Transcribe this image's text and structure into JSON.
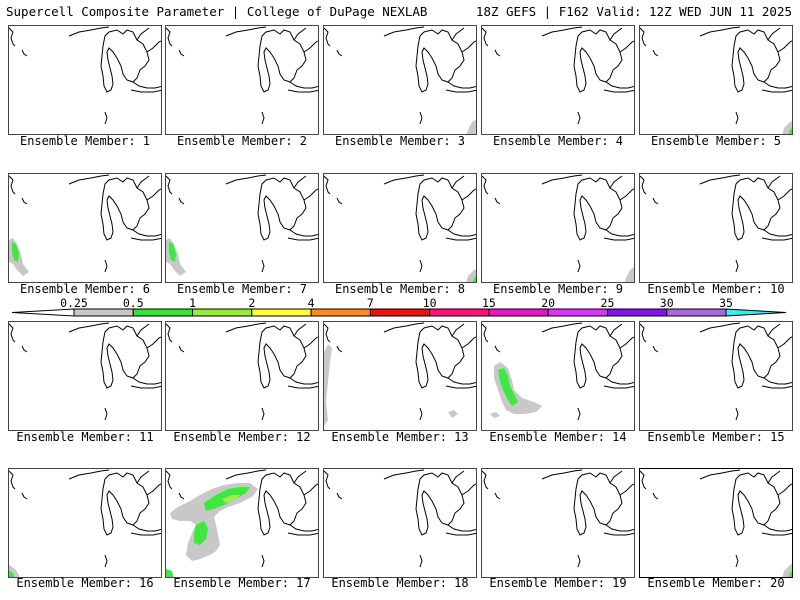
{
  "header": {
    "title": "Supercell Composite Parameter | College of DuPage NEXLAB",
    "run_info": "18Z GEFS | F162 Valid: 12Z WED JUN 11 2025"
  },
  "caption_prefix": "Ensemble Member:",
  "members": [
    {
      "id": "1",
      "label": "Ensemble Member: 1",
      "blobs": []
    },
    {
      "id": "2",
      "label": "Ensemble Member: 2",
      "blobs": []
    },
    {
      "id": "3",
      "label": "Ensemble Member: 3",
      "blobs": [
        {
          "shape": "edge-br",
          "level": "gray"
        }
      ]
    },
    {
      "id": "4",
      "label": "Ensemble Member: 4",
      "blobs": []
    },
    {
      "id": "5",
      "label": "Ensemble Member: 5",
      "blobs": [
        {
          "shape": "corner-br",
          "level": "green"
        }
      ]
    },
    {
      "id": "6",
      "label": "Ensemble Member: 6",
      "blobs": [
        {
          "shape": "west-small",
          "level": "green"
        }
      ]
    },
    {
      "id": "7",
      "label": "Ensemble Member: 7",
      "blobs": [
        {
          "shape": "west-small",
          "level": "green"
        }
      ]
    },
    {
      "id": "8",
      "label": "Ensemble Member: 8",
      "blobs": [
        {
          "shape": "corner-br",
          "level": "green"
        }
      ]
    },
    {
      "id": "9",
      "label": "Ensemble Member: 9",
      "blobs": [
        {
          "shape": "edge-br",
          "level": "gray"
        }
      ]
    },
    {
      "id": "10",
      "label": "Ensemble Member: 10",
      "blobs": []
    },
    {
      "id": "11",
      "label": "Ensemble Member: 11",
      "blobs": []
    },
    {
      "id": "12",
      "label": "Ensemble Member: 12",
      "blobs": []
    },
    {
      "id": "13",
      "label": "Ensemble Member: 13",
      "blobs": [
        {
          "shape": "west-strip",
          "level": "gray"
        }
      ]
    },
    {
      "id": "14",
      "label": "Ensemble Member: 14",
      "blobs": [
        {
          "shape": "west-band",
          "level": "green"
        }
      ]
    },
    {
      "id": "15",
      "label": "Ensemble Member: 15",
      "blobs": []
    },
    {
      "id": "16",
      "label": "Ensemble Member: 16",
      "blobs": [
        {
          "shape": "corner-bl",
          "level": "green"
        }
      ]
    },
    {
      "id": "17",
      "label": "Ensemble Member: 17",
      "blobs": [
        {
          "shape": "big-swath",
          "level": "green"
        }
      ]
    },
    {
      "id": "18",
      "label": "Ensemble Member: 18",
      "blobs": []
    },
    {
      "id": "19",
      "label": "Ensemble Member: 19",
      "blobs": []
    },
    {
      "id": "20",
      "label": "Ensemble Member: 20",
      "blobs": [
        {
          "shape": "corner-br",
          "level": "green"
        }
      ]
    }
  ],
  "colorbar": {
    "ticks": [
      "0.25",
      "0.5",
      "1",
      "2",
      "4",
      "7",
      "10",
      "15",
      "20",
      "25",
      "30",
      "35"
    ],
    "colors": [
      "#c8c8c8",
      "#33e633",
      "#99ee33",
      "#ffff33",
      "#ff8c1a",
      "#ee1111",
      "#ff1177",
      "#ee11cc",
      "#dd33ff",
      "#8811ee",
      "#aa66dd",
      "#33eeee"
    ]
  },
  "colors": {
    "gray": "#c8c8c8",
    "green": "#3ee83e",
    "light_green": "#99ee55",
    "coast": "#000000"
  }
}
